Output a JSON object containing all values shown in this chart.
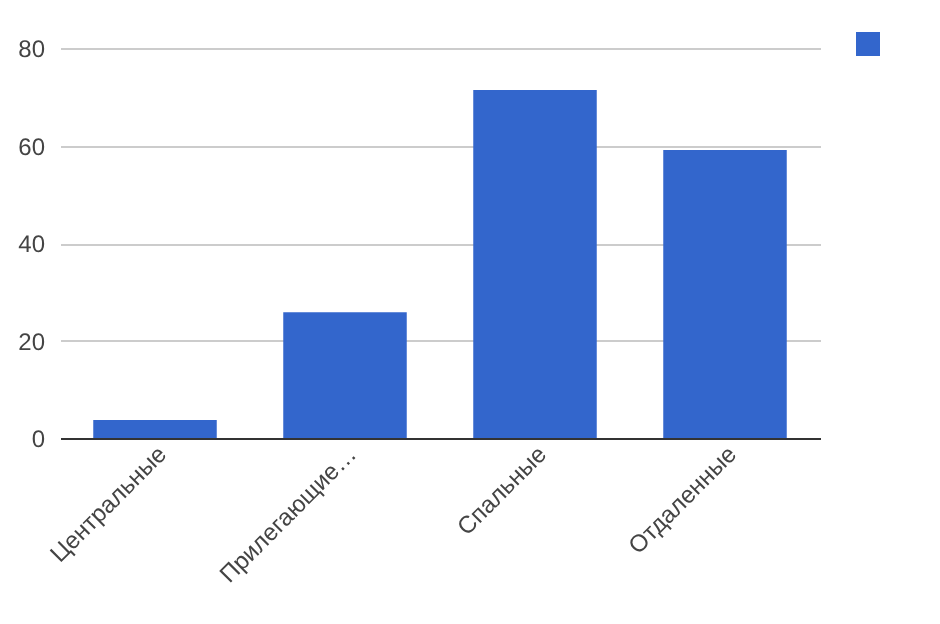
{
  "chart_data": {
    "type": "bar",
    "categories": [
      "Центральные",
      "Прилегающие…",
      "Спальные",
      "Отдаленные"
    ],
    "series": [
      {
        "color": "#3366cc",
        "values": [
          3.7,
          25.8,
          71.4,
          59.1
        ]
      }
    ],
    "ylim": [
      0,
      80
    ],
    "yticks": [
      0,
      20,
      40,
      60,
      80
    ],
    "grid": "y"
  }
}
